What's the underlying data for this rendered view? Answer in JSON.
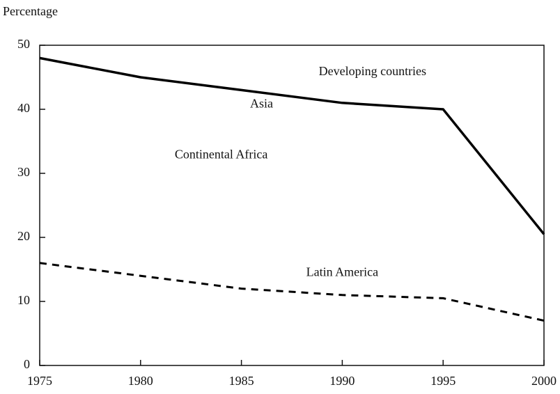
{
  "chart_data": {
    "type": "line",
    "y_axis_label": "Percentage",
    "x": [
      1975,
      1980,
      1985,
      1990,
      1995,
      2000
    ],
    "series": [
      {
        "color": "#000000",
        "dash": "solid",
        "values": [
          48,
          45,
          43,
          41,
          40,
          20.5
        ]
      },
      {
        "color": "#000000",
        "dash": "dashed",
        "values": [
          16,
          14,
          12,
          11,
          10.5,
          7
        ]
      }
    ],
    "annotations": [
      {
        "text": "Developing countries",
        "x": 1991.5,
        "y": 45.8
      },
      {
        "text": "Asia",
        "x": 1986,
        "y": 40.7
      },
      {
        "text": "Continental Africa",
        "x": 1984,
        "y": 32.8
      },
      {
        "text": "Latin America",
        "x": 1990,
        "y": 14.4
      }
    ],
    "xlim": [
      1975,
      2000
    ],
    "xticks": [
      1975,
      1980,
      1985,
      1990,
      1995,
      2000
    ],
    "ylim": [
      0,
      50
    ],
    "yticks": [
      0,
      10,
      20,
      30,
      40,
      50
    ],
    "grid": false
  }
}
